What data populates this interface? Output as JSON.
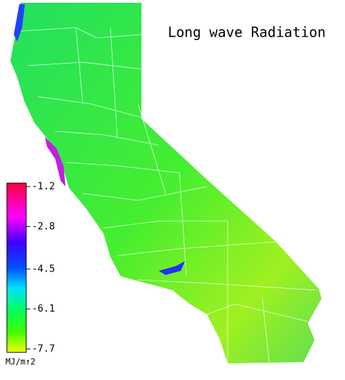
{
  "title": "Long wave Radiation",
  "colorbar": {
    "lim": [
      -1.2,
      -7.7
    ],
    "ticks": [
      -1.2,
      -2.8,
      -4.5,
      -6.1,
      -7.7
    ],
    "unit": "MJ/m↑2"
  }
}
